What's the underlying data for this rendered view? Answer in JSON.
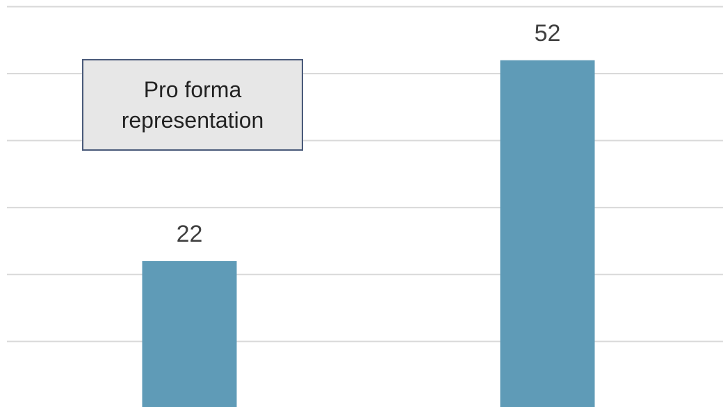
{
  "chart_data": {
    "type": "bar",
    "annotation": "Pro forma representation",
    "categories": [
      null,
      null
    ],
    "values": [
      22,
      52
    ],
    "color": "#5f9bb7",
    "ylim": [
      0,
      61
    ],
    "yticks": [
      10,
      20,
      30,
      40,
      50,
      60
    ],
    "grid": true
  }
}
